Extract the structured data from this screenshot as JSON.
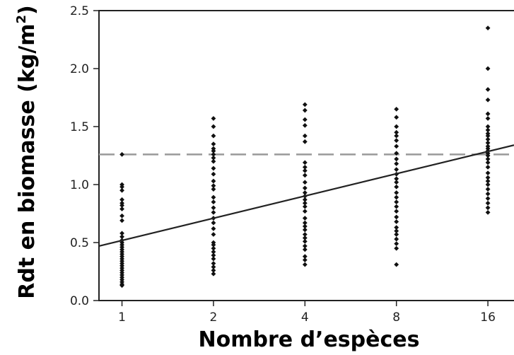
{
  "chart_data": {
    "type": "scatter",
    "xlabel": "Nombre d’espèces",
    "ylabel_main": "Rdt en biomasse (kg/m",
    "ylabel_sup": "2",
    "ylabel_end": ")",
    "x_scale": "log2",
    "x_ticks": [
      "1",
      "2",
      "4",
      "8",
      "16"
    ],
    "x_tick_values": [
      1,
      2,
      4,
      8,
      16
    ],
    "xlim": [
      0.84,
      19.5
    ],
    "ylim": [
      0.0,
      2.5
    ],
    "y_ticks": [
      "0.0",
      "0.5",
      "1.0",
      "1.5",
      "2.0",
      "2.5"
    ],
    "y_tick_values": [
      0.0,
      0.5,
      1.0,
      1.5,
      2.0,
      2.5
    ],
    "series": [
      {
        "x": 1,
        "y": [
          1.26,
          1.0,
          0.98,
          0.95,
          0.87,
          0.84,
          0.82,
          0.79,
          0.73,
          0.69,
          0.58,
          0.55,
          0.52,
          0.5,
          0.48,
          0.46,
          0.44,
          0.42,
          0.4,
          0.38,
          0.36,
          0.34,
          0.32,
          0.3,
          0.28,
          0.26,
          0.24,
          0.22,
          0.2,
          0.18,
          0.16,
          0.14,
          0.13
        ]
      },
      {
        "x": 2,
        "y": [
          1.57,
          1.5,
          1.42,
          1.35,
          1.31,
          1.29,
          1.26,
          1.23,
          1.2,
          1.14,
          1.09,
          1.03,
          0.99,
          0.96,
          0.89,
          0.85,
          0.8,
          0.76,
          0.71,
          0.67,
          0.62,
          0.57,
          0.5,
          0.48,
          0.45,
          0.42,
          0.39,
          0.36,
          0.32,
          0.29,
          0.26,
          0.23
        ]
      },
      {
        "x": 4,
        "y": [
          1.69,
          1.64,
          1.56,
          1.51,
          1.42,
          1.37,
          1.19,
          1.15,
          1.12,
          1.08,
          1.02,
          0.97,
          0.93,
          0.9,
          0.87,
          0.84,
          0.81,
          0.77,
          0.71,
          0.67,
          0.64,
          0.61,
          0.57,
          0.54,
          0.51,
          0.47,
          0.44,
          0.38,
          0.35,
          0.31
        ]
      },
      {
        "x": 8,
        "y": [
          1.65,
          1.58,
          1.5,
          1.45,
          1.42,
          1.38,
          1.33,
          1.27,
          1.22,
          1.18,
          1.13,
          1.09,
          1.05,
          1.02,
          0.98,
          0.93,
          0.89,
          0.85,
          0.81,
          0.77,
          0.72,
          0.68,
          0.63,
          0.6,
          0.57,
          0.53,
          0.49,
          0.45,
          0.31
        ]
      },
      {
        "x": 16,
        "y": [
          2.35,
          2.0,
          1.82,
          1.73,
          1.61,
          1.57,
          1.5,
          1.47,
          1.44,
          1.42,
          1.39,
          1.36,
          1.33,
          1.31,
          1.29,
          1.27,
          1.25,
          1.22,
          1.19,
          1.15,
          1.1,
          1.06,
          1.03,
          1.0,
          0.96,
          0.92,
          0.88,
          0.84,
          0.8,
          0.76
        ]
      }
    ],
    "reference_line": {
      "y": 1.26,
      "style": "dashed",
      "color": "#999999"
    },
    "regression_line": {
      "from": {
        "x": 0.84,
        "y": 0.47
      },
      "to": {
        "x": 19.5,
        "y": 1.34
      },
      "color": "#222222"
    },
    "point_color": "#111111",
    "grid": false,
    "legend": "none"
  }
}
